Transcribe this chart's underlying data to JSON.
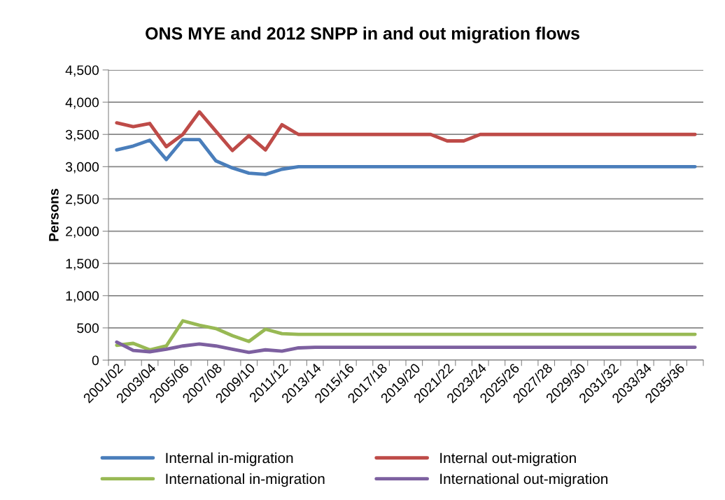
{
  "chart_data": {
    "type": "line",
    "title": "ONS MYE and 2012 SNPP in and out migration flows",
    "ylabel": "Persons",
    "categories": [
      "2001/02",
      null,
      "2003/04",
      null,
      "2005/06",
      null,
      "2007/08",
      null,
      "2009/10",
      null,
      "2011/12",
      null,
      "2013/14",
      null,
      "2015/16",
      null,
      "2017/18",
      null,
      "2019/20",
      null,
      "2021/22",
      null,
      "2023/24",
      null,
      "2025/26",
      null,
      "2027/28",
      null,
      "2029/30",
      null,
      "2031/32",
      null,
      "2033/34",
      null,
      "2035/36",
      null
    ],
    "series": [
      {
        "name": "Internal in-migration",
        "color": "#4a7ebb",
        "values": [
          3260,
          3320,
          3410,
          3110,
          3420,
          3420,
          3090,
          2980,
          2900,
          2880,
          2960,
          3000,
          3000,
          3000,
          3000,
          3000,
          3000,
          3000,
          3000,
          3000,
          3000,
          3000,
          3000,
          3000,
          3000,
          3000,
          3000,
          3000,
          3000,
          3000,
          3000,
          3000,
          3000,
          3000,
          3000,
          3000
        ]
      },
      {
        "name": "Internal out-migration",
        "color": "#be4b48",
        "values": [
          3680,
          3620,
          3670,
          3310,
          3500,
          3850,
          3550,
          3250,
          3480,
          3260,
          3650,
          3500,
          3500,
          3500,
          3500,
          3500,
          3500,
          3500,
          3500,
          3500,
          3400,
          3400,
          3500,
          3500,
          3500,
          3500,
          3500,
          3500,
          3500,
          3500,
          3500,
          3500,
          3500,
          3500,
          3500,
          3500
        ]
      },
      {
        "name": "International in-migration",
        "color": "#98b954",
        "values": [
          230,
          260,
          160,
          220,
          610,
          540,
          490,
          380,
          290,
          480,
          410,
          400,
          400,
          400,
          400,
          400,
          400,
          400,
          400,
          400,
          400,
          400,
          400,
          400,
          400,
          400,
          400,
          400,
          400,
          400,
          400,
          400,
          400,
          400,
          400,
          400
        ]
      },
      {
        "name": "International out-migration",
        "color": "#7d60a0",
        "values": [
          280,
          150,
          130,
          170,
          220,
          250,
          220,
          170,
          120,
          160,
          140,
          190,
          200,
          200,
          200,
          200,
          200,
          200,
          200,
          200,
          200,
          200,
          200,
          200,
          200,
          200,
          200,
          200,
          200,
          200,
          200,
          200,
          200,
          200,
          200,
          200
        ]
      }
    ],
    "ylim": [
      0,
      4500
    ],
    "yticks": [
      {
        "value": 0,
        "label": "0"
      },
      {
        "value": 500,
        "label": "500"
      },
      {
        "value": 1000,
        "label": "1,000"
      },
      {
        "value": 1500,
        "label": "1,500"
      },
      {
        "value": 2000,
        "label": "2,000"
      },
      {
        "value": 2500,
        "label": "2,500"
      },
      {
        "value": 3000,
        "label": "3,000"
      },
      {
        "value": 3500,
        "label": "3,500"
      },
      {
        "value": 4000,
        "label": "4,000"
      },
      {
        "value": 4500,
        "label": "4,500"
      }
    ],
    "grid": "y",
    "legend": "bottom",
    "marker": "none",
    "line_style": "solid"
  }
}
